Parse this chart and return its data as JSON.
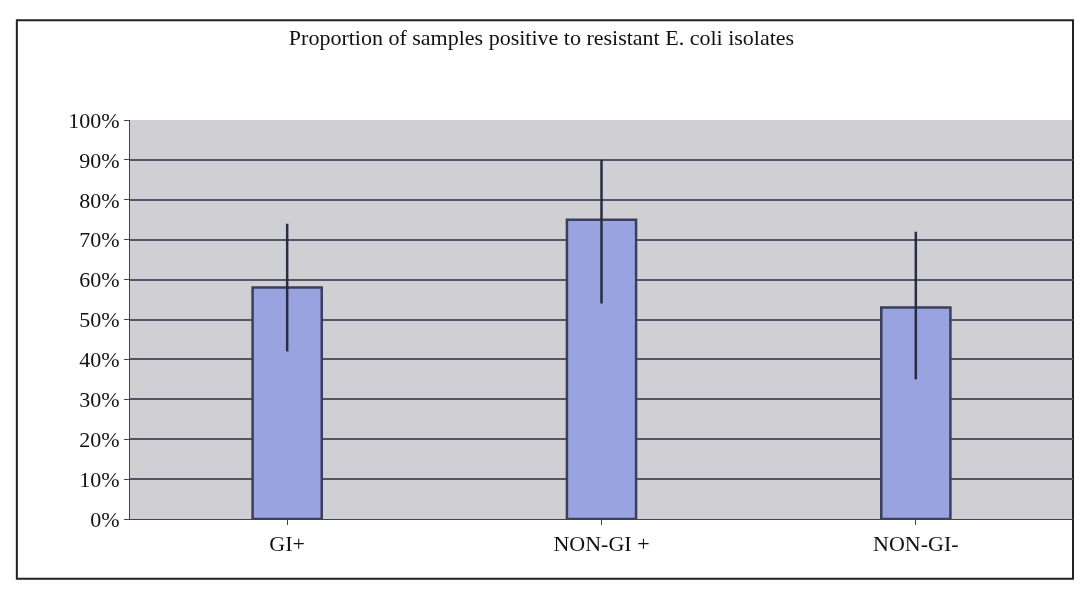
{
  "chart_data": {
    "type": "bar",
    "title": "Proportion of samples positive to resistant E. coli isolates",
    "categories": [
      "GI+",
      "NON-GI +",
      "NON-GI-"
    ],
    "values": [
      58,
      75,
      53
    ],
    "errors": [
      [
        42,
        74
      ],
      [
        54,
        90
      ],
      [
        35,
        72
      ]
    ],
    "color": "#99a3e0",
    "ylim": [
      0,
      100
    ],
    "yticks": [
      {
        "value": 0,
        "label": "0%"
      },
      {
        "value": 10,
        "label": "10%"
      },
      {
        "value": 20,
        "label": "20%"
      },
      {
        "value": 30,
        "label": "30%"
      },
      {
        "value": 40,
        "label": "40%"
      },
      {
        "value": 50,
        "label": "50%"
      },
      {
        "value": 60,
        "label": "60%"
      },
      {
        "value": 70,
        "label": "70%"
      },
      {
        "value": 80,
        "label": "80%"
      },
      {
        "value": 90,
        "label": "90%"
      },
      {
        "value": 100,
        "label": "100%"
      }
    ],
    "grid": "y"
  }
}
